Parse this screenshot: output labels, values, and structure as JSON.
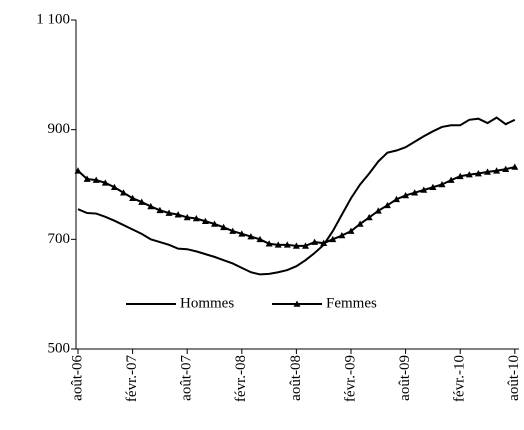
{
  "chart_data": {
    "type": "line",
    "categories": [
      "août-06",
      null,
      null,
      null,
      null,
      null,
      "févr.-07",
      null,
      null,
      null,
      null,
      null,
      "août-07",
      null,
      null,
      null,
      null,
      null,
      "févr.-08",
      null,
      null,
      null,
      null,
      null,
      "août-08",
      null,
      null,
      null,
      null,
      null,
      "févr.-09",
      null,
      null,
      null,
      null,
      null,
      "août-09",
      null,
      null,
      null,
      null,
      null,
      "févr.-10",
      null,
      null,
      null,
      null,
      null,
      "août-10"
    ],
    "series": [
      {
        "name": "Hommes",
        "color": "#000000",
        "marker": "none",
        "values": [
          755,
          748,
          747,
          741,
          734,
          726,
          718,
          710,
          700,
          695,
          690,
          683,
          682,
          678,
          673,
          668,
          662,
          656,
          648,
          640,
          636,
          637,
          640,
          644,
          651,
          662,
          675,
          690,
          715,
          745,
          775,
          800,
          820,
          842,
          858,
          862,
          868,
          878,
          888,
          897,
          905,
          908,
          908,
          918,
          920,
          912,
          922,
          910,
          918
        ]
      },
      {
        "name": "Femmes",
        "color": "#000000",
        "marker": "triangle",
        "values": [
          825,
          810,
          808,
          803,
          795,
          785,
          775,
          768,
          760,
          753,
          748,
          745,
          740,
          738,
          733,
          728,
          722,
          715,
          710,
          705,
          700,
          692,
          690,
          690,
          688,
          688,
          695,
          693,
          700,
          707,
          715,
          728,
          740,
          752,
          762,
          773,
          780,
          785,
          790,
          795,
          800,
          808,
          815,
          818,
          820,
          823,
          825,
          828,
          832
        ]
      }
    ],
    "ylim": [
      500,
      1100
    ],
    "yticks": [
      500,
      700,
      900,
      {
        "value": 1100,
        "label": "1 100"
      }
    ],
    "grid": false,
    "legend": "inside-bottom"
  }
}
